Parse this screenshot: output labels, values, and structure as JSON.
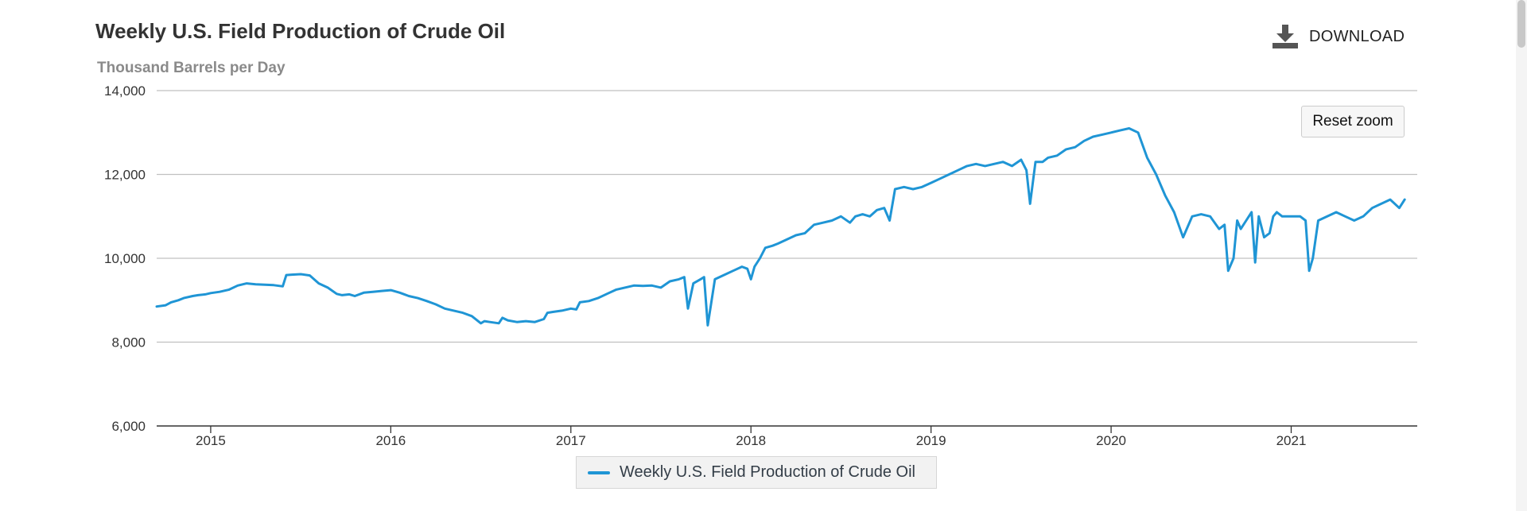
{
  "chart_data": {
    "type": "line",
    "title": "Weekly U.S. Field Production of Crude Oil",
    "ylabel": "Thousand Barrels per Day",
    "xlabel": "",
    "ylim": [
      6000,
      14000
    ],
    "xlim": [
      2014.7,
      2021.7
    ],
    "y_ticks": [
      "6,000",
      "8,000",
      "10,000",
      "12,000",
      "14,000"
    ],
    "y_tick_values": [
      6000,
      8000,
      10000,
      12000,
      14000
    ],
    "x_ticks": [
      "2015",
      "2016",
      "2017",
      "2018",
      "2019",
      "2020",
      "2021"
    ],
    "x_tick_values": [
      2015,
      2016,
      2017,
      2018,
      2019,
      2020,
      2021
    ],
    "grid": true,
    "legend": "bottom-center",
    "series": [
      {
        "name": "Weekly U.S. Field Production of Crude Oil",
        "color": "#1f95d5",
        "x": [
          2014.7,
          2014.75,
          2014.78,
          2014.82,
          2014.85,
          2014.9,
          2014.93,
          2014.97,
          2015.0,
          2015.05,
          2015.1,
          2015.15,
          2015.2,
          2015.25,
          2015.3,
          2015.35,
          2015.4,
          2015.42,
          2015.45,
          2015.5,
          2015.55,
          2015.6,
          2015.65,
          2015.7,
          2015.73,
          2015.77,
          2015.8,
          2015.85,
          2015.9,
          2015.95,
          2016.0,
          2016.05,
          2016.1,
          2016.15,
          2016.2,
          2016.25,
          2016.3,
          2016.35,
          2016.4,
          2016.45,
          2016.5,
          2016.52,
          2016.55,
          2016.6,
          2016.62,
          2016.65,
          2016.7,
          2016.75,
          2016.8,
          2016.85,
          2016.87,
          2016.9,
          2016.95,
          2017.0,
          2017.03,
          2017.05,
          2017.1,
          2017.15,
          2017.2,
          2017.25,
          2017.3,
          2017.35,
          2017.4,
          2017.45,
          2017.5,
          2017.55,
          2017.6,
          2017.63,
          2017.65,
          2017.68,
          2017.72,
          2017.74,
          2017.76,
          2017.8,
          2017.85,
          2017.9,
          2017.95,
          2017.98,
          2018.0,
          2018.02,
          2018.05,
          2018.08,
          2018.12,
          2018.15,
          2018.2,
          2018.25,
          2018.3,
          2018.35,
          2018.4,
          2018.45,
          2018.5,
          2018.55,
          2018.58,
          2018.62,
          2018.66,
          2018.7,
          2018.74,
          2018.77,
          2018.8,
          2018.85,
          2018.9,
          2018.95,
          2019.0,
          2019.05,
          2019.1,
          2019.15,
          2019.2,
          2019.25,
          2019.3,
          2019.35,
          2019.4,
          2019.45,
          2019.5,
          2019.53,
          2019.55,
          2019.58,
          2019.62,
          2019.65,
          2019.7,
          2019.75,
          2019.8,
          2019.85,
          2019.9,
          2019.95,
          2020.0,
          2020.05,
          2020.1,
          2020.15,
          2020.2,
          2020.25,
          2020.3,
          2020.35,
          2020.4,
          2020.45,
          2020.5,
          2020.55,
          2020.6,
          2020.63,
          2020.65,
          2020.68,
          2020.7,
          2020.72,
          2020.75,
          2020.78,
          2020.8,
          2020.82,
          2020.85,
          2020.88,
          2020.9,
          2020.92,
          2020.95,
          2021.0,
          2021.05,
          2021.08,
          2021.1,
          2021.12,
          2021.15,
          2021.2,
          2021.25,
          2021.3,
          2021.35,
          2021.4,
          2021.45,
          2021.5,
          2021.55,
          2021.6,
          2021.63
        ],
        "values": [
          8850,
          8880,
          8950,
          9000,
          9050,
          9100,
          9120,
          9140,
          9170,
          9200,
          9250,
          9350,
          9400,
          9380,
          9370,
          9360,
          9330,
          9600,
          9610,
          9620,
          9590,
          9400,
          9300,
          9150,
          9120,
          9140,
          9100,
          9180,
          9200,
          9220,
          9240,
          9180,
          9100,
          9050,
          8980,
          8900,
          8800,
          8750,
          8700,
          8620,
          8450,
          8500,
          8480,
          8450,
          8580,
          8520,
          8480,
          8500,
          8480,
          8550,
          8700,
          8720,
          8750,
          8800,
          8780,
          8950,
          8980,
          9050,
          9150,
          9250,
          9300,
          9350,
          9340,
          9350,
          9300,
          9450,
          9500,
          9550,
          8800,
          9400,
          9500,
          9550,
          8400,
          9500,
          9600,
          9700,
          9800,
          9750,
          9500,
          9800,
          10000,
          10250,
          10300,
          10350,
          10450,
          10550,
          10600,
          10800,
          10850,
          10900,
          11000,
          10850,
          11000,
          11050,
          11000,
          11150,
          11200,
          10900,
          11650,
          11700,
          11650,
          11700,
          11800,
          11900,
          12000,
          12100,
          12200,
          12250,
          12200,
          12250,
          12300,
          12200,
          12350,
          12100,
          11300,
          12300,
          12300,
          12400,
          12450,
          12600,
          12650,
          12800,
          12900,
          12950,
          13000,
          13050,
          13100,
          13000,
          12400,
          12000,
          11500,
          11100,
          10500,
          11000,
          11050,
          11000,
          10700,
          10800,
          9700,
          10000,
          10900,
          10700,
          10900,
          11100,
          9900,
          11000,
          10500,
          10600,
          11000,
          11100,
          11000,
          11000,
          11000,
          10900,
          9700,
          10000,
          10900,
          11000,
          11100,
          11000,
          10900,
          11000,
          11200,
          11300,
          11400,
          11200,
          11400
        ]
      }
    ]
  },
  "header": {
    "download_label": "DOWNLOAD",
    "download_icon": "download-icon"
  },
  "controls": {
    "reset_zoom_label": "Reset zoom"
  },
  "legend": {
    "label": "Weekly U.S. Field Production of Crude Oil"
  }
}
